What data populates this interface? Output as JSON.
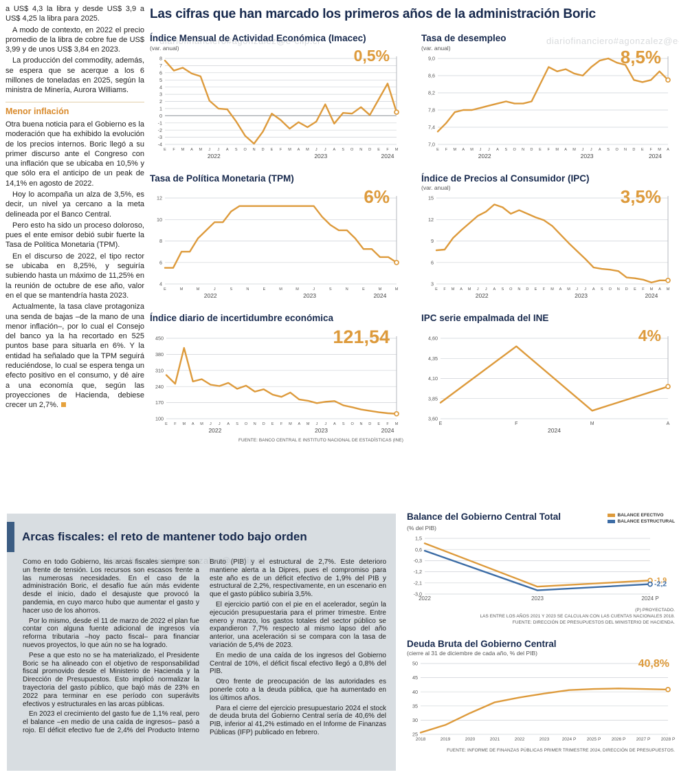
{
  "main_title": "Las cifras que han marcado los primeros años de la administración Boric",
  "watermark": "diariofinanciero#agonzalez@e-clip.cl",
  "palette": {
    "orange": "#DD9A3B",
    "blue": "#3C6CA5",
    "navy": "#17294d"
  },
  "article": {
    "intro_paragraphs": [
      "a US$ 4,3 la libra y desde US$ 3,9 a US$ 4,25 la libra para 2025.",
      "A modo de contexto, en 2022 el precio promedio de la libra de cobre fue de US$ 3,99 y de unos US$ 3,84 en 2023.",
      "La producción del commodity, además, se espera que se acerque a los 6 millones de toneladas en 2025, según la ministra de Minería, Aurora Williams."
    ],
    "section_heading": "Menor inflación",
    "inflation_paragraphs": [
      "Otra buena noticia para el Gobierno es la moderación que ha exhibido la evolución de los precios internos. Boric llegó a su primer discurso ante el Congreso con una inflación que se ubicaba en 10,5% y que sólo era el anticipo de un peak de 14,1% en agosto de 2022.",
      "Hoy lo acompaña un alza de 3,5%, es decir, un nivel ya cercano a la meta delineada por el Banco Central.",
      "Pero esto ha sido un proceso doloroso, pues el ente emisor debió subir fuerte la Tasa de Política Monetaria (TPM).",
      "En el discurso de 2022, el tipo rector se ubicaba en 8,25%, y seguiría subiendo hasta un máximo de 11,25% en la reunión de octubre de ese año, valor en el que se mantendría hasta 2023.",
      "Actualmente, la tasa clave protagoniza una senda de bajas –de la mano de una menor inflación–, por lo cual el Consejo del banco ya la ha recortado en 525 puntos base para situarla en 6%. Y la entidad ha señalado que la TPM seguirá reduciéndose, lo cual se espera tenga un efecto positivo en el consumo, y dé aire a una economía que, según las proyecciones de Hacienda, debiese crecer un 2,7%."
    ]
  },
  "fiscal": {
    "title": "Arcas fiscales: el reto de mantener todo bajo orden",
    "paragraphs": [
      "Como en todo Gobierno, las arcas fiscales siempre son un frente de tensión. Los recursos son escasos frente a las numerosas necesidades. En el caso de la administración Boric, el desafío fue aún más evidente desde el inicio, dado el desajuste que provocó la pandemia, en cuyo marco hubo que aumentar el gasto y hacer uso de los ahorros.",
      "Por lo mismo, desde el 11 de marzo de 2022 el plan fue contar con alguna fuente adicional de ingresos vía reforma tributaria –hoy pacto fiscal– para financiar nuevos proyectos, lo que aún no se ha logrado.",
      "Pese a que esto no se ha materializado, el Presidente Boric se ha alineado con el objetivo de responsabilidad fiscal promovido desde el Ministerio de Hacienda y la Dirección de Presupuestos. Esto implicó normalizar la trayectoria del gasto público, que bajó más de 23% en 2022 para terminar en ese período con superávits efectivos y estructurales en las arcas públicas.",
      "En 2023 el crecimiento del gasto fue de 1,1% real, pero el balance –en medio de una caída de ingresos– pasó a rojo. El déficit efectivo fue de 2,4% del Producto Interno Bruto (PIB) y el estructural de 2,7%. Este deterioro mantiene alerta a la Dipres, pues el compromiso para este año es de un déficit efectivo de 1,9% del PIB y estructural de 2,2%, respectivamente, en un escenario en que el gasto público subiría 3,5%.",
      "El ejercicio partió con el pie en el acelerador, según la ejecución presupuestaria para el primer trimestre. Entre enero y marzo, los gastos totales del sector público se expandieron 7,7% respecto al mismo lapso del año anterior, una aceleración si se compara con la tasa de variación de 5,4% de 2023.",
      "En medio de una caída de los ingresos del Gobierno Central de 10%, el déficit fiscal efectivo llegó a 0,8% del PIB.",
      "Otro frente de preocupación de las autoridades es ponerle coto a la deuda pública, que ha aumentado en los últimos años.",
      "Para el cierre del ejercicio presupuestario 2024 el stock de deuda bruta del Gobierno Central sería de 40,6% del PIB, inferior al 41,2% estimado en el Informe de Finanzas Públicas (IFP) publicado en febrero."
    ]
  },
  "chart_data": {
    "main_charts": [
      {
        "id": "imacec",
        "type": "line",
        "title": "Índice Mensual de Actividad Económica (Imacec)",
        "subtitle": "(var. anual)",
        "highlight": "0,5%",
        "hl_size": 23,
        "y_ticks": [
          8,
          7,
          6,
          5,
          4,
          3,
          2,
          1,
          0,
          -1,
          -2,
          -3,
          -4
        ],
        "y_labels": [
          "8",
          "7",
          "6",
          "5",
          "4",
          "3",
          "2",
          "1",
          "0",
          "-1",
          "-2",
          "-3",
          "-4"
        ],
        "zero_dark": true,
        "x_labels": [
          "E",
          "F",
          "M",
          "A",
          "M",
          "J",
          "J",
          "A",
          "S",
          "O",
          "N",
          "D",
          "E",
          "F",
          "M",
          "A",
          "M",
          "J",
          "J",
          "A",
          "S",
          "O",
          "N",
          "D",
          "E",
          "F",
          "M"
        ],
        "years": [
          {
            "label": "2022",
            "from": 0,
            "to": 11
          },
          {
            "label": "2023",
            "from": 12,
            "to": 23
          },
          {
            "label": "2024",
            "from": 24,
            "to": 26
          }
        ],
        "series": [
          {
            "name": "Imacec var. anual",
            "color": "#DD9A3B",
            "values": [
              7.7,
              6.3,
              6.7,
              5.9,
              5.5,
              2.1,
              1.0,
              0.9,
              -0.8,
              -2.8,
              -3.9,
              -2.2,
              0.3,
              -0.6,
              -1.8,
              -0.9,
              -1.6,
              -0.8,
              1.6,
              -1.1,
              0.4,
              0.3,
              1.2,
              0.1,
              2.3,
              4.5,
              0.5
            ]
          }
        ],
        "h": 158,
        "ml": 22
      },
      {
        "id": "desempleo",
        "type": "line",
        "title": "Tasa de desempleo",
        "subtitle": "(var. anual)",
        "highlight": "8,5%",
        "hl_size": 26,
        "y_ticks": [
          9.0,
          8.6,
          8.2,
          7.8,
          7.4,
          7.0
        ],
        "y_labels": [
          "9,0",
          "8,6",
          "8,2",
          "7,8",
          "7,4",
          "7,0"
        ],
        "x_labels": [
          "E",
          "F",
          "M",
          "A",
          "M",
          "J",
          "J",
          "A",
          "S",
          "O",
          "N",
          "D",
          "E",
          "F",
          "M",
          "A",
          "M",
          "J",
          "J",
          "A",
          "S",
          "O",
          "N",
          "D",
          "E",
          "F",
          "M",
          "A"
        ],
        "years": [
          {
            "label": "2022",
            "from": 0,
            "to": 11
          },
          {
            "label": "2023",
            "from": 12,
            "to": 23
          },
          {
            "label": "2024",
            "from": 24,
            "to": 27
          }
        ],
        "series": [
          {
            "name": "Tasa de desempleo",
            "color": "#DD9A3B",
            "values": [
              7.3,
              7.5,
              7.75,
              7.8,
              7.8,
              7.85,
              7.9,
              7.95,
              8.0,
              7.95,
              7.95,
              8.0,
              8.4,
              8.8,
              8.7,
              8.75,
              8.65,
              8.6,
              8.8,
              8.95,
              9.0,
              8.9,
              8.85,
              8.5,
              8.45,
              8.5,
              8.7,
              8.5
            ]
          }
        ],
        "h": 158,
        "ml": 24
      },
      {
        "id": "tpm",
        "type": "line",
        "title": "Tasa de Política Monetaria (TPM)",
        "subtitle": "",
        "highlight": "6%",
        "hl_size": 26,
        "y_ticks": [
          12,
          10,
          8,
          6,
          4
        ],
        "y_labels": [
          "12",
          "10",
          "8",
          "6",
          "4"
        ],
        "x_labels": [
          "E",
          "",
          "M",
          "",
          "M",
          "",
          "J",
          "",
          "S",
          "",
          "N",
          "",
          "E",
          "",
          "M",
          "",
          "M",
          "",
          "J",
          "",
          "S",
          "",
          "N",
          "",
          "E",
          "",
          "M",
          "",
          "M"
        ],
        "years": [
          {
            "label": "2022",
            "from": 0,
            "to": 11
          },
          {
            "label": "2023",
            "from": 12,
            "to": 23
          },
          {
            "label": "2024",
            "from": 24,
            "to": 28
          }
        ],
        "series": [
          {
            "name": "TPM",
            "color": "#DD9A3B",
            "values": [
              5.5,
              5.5,
              7.0,
              7.0,
              8.25,
              9.0,
              9.75,
              9.75,
              10.75,
              11.25,
              11.25,
              11.25,
              11.25,
              11.25,
              11.25,
              11.25,
              11.25,
              11.25,
              11.25,
              10.25,
              9.5,
              9.0,
              9.0,
              8.25,
              7.25,
              7.25,
              6.5,
              6.5,
              6.0
            ]
          }
        ],
        "h": 158,
        "ml": 22
      },
      {
        "id": "ipc",
        "type": "line",
        "title": "Índice de Precios al Consumidor (IPC)",
        "subtitle": "(var. anual)",
        "highlight": "3,5%",
        "hl_size": 26,
        "y_ticks": [
          15,
          12,
          9,
          6,
          3
        ],
        "y_labels": [
          "15",
          "12",
          "9",
          "6",
          "3"
        ],
        "x_labels": [
          "E",
          "F",
          "M",
          "A",
          "M",
          "J",
          "J",
          "A",
          "S",
          "O",
          "N",
          "D",
          "E",
          "F",
          "M",
          "A",
          "M",
          "J",
          "J",
          "A",
          "S",
          "O",
          "N",
          "D",
          "E",
          "F",
          "M",
          "A",
          "M"
        ],
        "years": [
          {
            "label": "2022",
            "from": 0,
            "to": 11
          },
          {
            "label": "2023",
            "from": 12,
            "to": 23
          },
          {
            "label": "2024",
            "from": 24,
            "to": 28
          }
        ],
        "series": [
          {
            "name": "IPC var. anual",
            "color": "#DD9A3B",
            "values": [
              7.7,
              7.8,
              9.4,
              10.5,
              11.5,
              12.5,
              13.1,
              14.1,
              13.7,
              12.8,
              13.3,
              12.8,
              12.3,
              11.9,
              11.1,
              9.9,
              8.7,
              7.6,
              6.5,
              5.3,
              5.1,
              5.0,
              4.8,
              3.9,
              3.8,
              3.6,
              3.2,
              3.5,
              3.5
            ]
          }
        ],
        "h": 158,
        "ml": 22
      },
      {
        "id": "incertidumbre",
        "type": "line",
        "title": "Índice diario de incertidumbre económica",
        "subtitle": "",
        "highlight": "121,54",
        "hl_size": 27,
        "y_ticks": [
          450,
          380,
          310,
          240,
          170,
          100
        ],
        "y_labels": [
          "450",
          "380",
          "310",
          "240",
          "170",
          "100"
        ],
        "x_labels": [
          "E",
          "F",
          "M",
          "A",
          "M",
          "J",
          "J",
          "A",
          "S",
          "O",
          "N",
          "D",
          "E",
          "F",
          "M",
          "A",
          "M",
          "J",
          "J",
          "A",
          "S",
          "O",
          "N",
          "D",
          "E",
          "F",
          "M"
        ],
        "years": [
          {
            "label": "2022",
            "from": 0,
            "to": 11
          },
          {
            "label": "2023",
            "from": 12,
            "to": 23
          },
          {
            "label": "2024",
            "from": 24,
            "to": 26
          }
        ],
        "series": [
          {
            "name": "Incertidumbre económica",
            "color": "#DD9A3B",
            "values": [
              290,
              252,
              408,
              262,
              272,
              248,
              242,
              256,
              230,
              244,
              218,
              228,
              205,
              195,
              214,
              184,
              178,
              168,
              174,
              177,
              158,
              150,
              140,
              134,
              128,
              124,
              121.54
            ]
          }
        ],
        "h": 150,
        "ml": 24,
        "notes": [
          "FUENTE: BANCO CENTRAL E INSTITUTO NACIONAL DE ESTADÍSTICAS (INE)"
        ]
      },
      {
        "id": "ipc-empalmada",
        "type": "line",
        "title": "IPC serie empalmada del INE",
        "subtitle": "",
        "highlight": "4%",
        "hl_size": 23,
        "y_ticks": [
          4.6,
          4.35,
          4.1,
          3.85,
          3.6
        ],
        "y_labels": [
          "4,60",
          "4,35",
          "4,10",
          "3,85",
          "3,60"
        ],
        "x_labels": [
          "E",
          "F",
          "M",
          "A"
        ],
        "x_font": 7,
        "years": [
          {
            "label": "2024",
            "from": 0,
            "to": 3
          }
        ],
        "series": [
          {
            "name": "IPC serie empalmada",
            "color": "#DD9A3B",
            "values": [
              3.8,
              4.5,
              3.7,
              4.0
            ]
          }
        ],
        "h": 150,
        "ml": 28
      }
    ],
    "fiscal_charts": [
      {
        "id": "balance",
        "type": "line",
        "title": "Balance del Gobierno Central Total",
        "subtitle": "(% del PIB)",
        "legend": [
          {
            "label": "BALANCE EFECTIVO",
            "color": "#DD9A3B"
          },
          {
            "label": "BALANCE ESTRUCTURAL",
            "color": "#3C6CA5"
          }
        ],
        "y_ticks": [
          1.5,
          0.6,
          -0.3,
          -1.2,
          -2.1,
          -3.0
        ],
        "y_labels": [
          "1,5",
          "0,6",
          "-0,3",
          "-1,2",
          "-2,1",
          "-3,0"
        ],
        "x_labels": [
          "2022",
          "2023",
          "2024 P"
        ],
        "x_font": 8,
        "series": [
          {
            "name": "Balance Efectivo",
            "color": "#DD9A3B",
            "values": [
              1.1,
              -2.4,
              -1.9
            ],
            "end_label": "-1,9"
          },
          {
            "name": "Balance Estructural",
            "color": "#3C6CA5",
            "values": [
              0.5,
              -2.7,
              -2.2
            ],
            "end_label": "-2,2"
          }
        ],
        "guide": false,
        "h": 106,
        "ml": 26,
        "mr": 36,
        "notes": [
          "(P) PROYECTADO.",
          "LAS ENTRE LOS AÑOS 2021 Y 2023 SE CALCULAN  CON LAS CUENTAS NACIONALES 2018.",
          "FUENTE: DIRECCIÓN DE PRESUPUESTOS DEL MINISTERIO DE HACIENDA."
        ]
      },
      {
        "id": "deuda",
        "type": "line",
        "title": "Deuda Bruta del Gobierno Central",
        "subtitle": "(cierre al 31 de diciembre de cada año, % del PIB)",
        "highlight": "40,8%",
        "hl_size": 16,
        "hl_top": 0,
        "hl_right": 8,
        "y_ticks": [
          50,
          45,
          40,
          35,
          30,
          25
        ],
        "y_labels": [
          "50",
          "45",
          "40",
          "35",
          "30",
          "25"
        ],
        "x_labels": [
          "2018",
          "2019",
          "2020",
          "2021",
          "2022",
          "2023",
          "2024 P",
          "2025 P",
          "2026 P",
          "2027 P",
          "2028 P"
        ],
        "x_font": 6.5,
        "series": [
          {
            "name": "Deuda bruta",
            "color": "#DD9A3B",
            "values": [
              25.6,
              28.3,
              32.5,
              36.3,
              38.0,
              39.4,
              40.6,
              41.0,
              41.2,
              41.0,
              40.8
            ]
          }
        ],
        "guide": false,
        "h": 128,
        "ml": 20,
        "notes": [
          "FUENTE: INFORME DE FINANZAS PÚBLICAS PRIMER TRIMESTRE 2024, DIRECCIÓN DE PRESUPUESTOS."
        ]
      }
    ]
  }
}
